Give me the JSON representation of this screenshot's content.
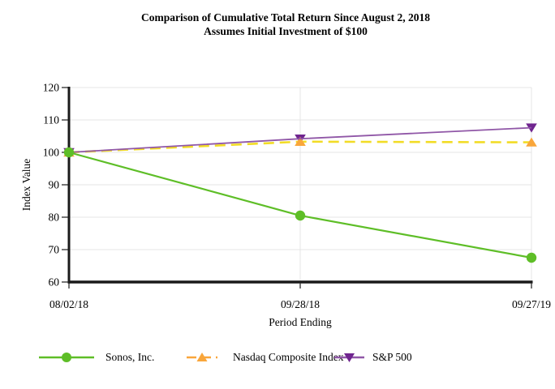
{
  "chart_data": {
    "type": "line",
    "title": "Comparison of Cumulative Total Return Since August 2, 2018",
    "subtitle": "Assumes Initial Investment of $100",
    "x": [
      "08/02/18",
      "09/28/18",
      "09/27/19"
    ],
    "xlabel": "Period Ending",
    "ylabel": "Index Value",
    "ylim": [
      60,
      120
    ],
    "yticks": [
      60,
      70,
      80,
      90,
      100,
      110,
      120
    ],
    "grid": true,
    "legend_position": "bottom",
    "series": [
      {
        "name": "Sonos, Inc.",
        "values": [
          100,
          80.5,
          67.5
        ],
        "line_color": "#5ebe27",
        "marker_color": "#5ebe27",
        "marker": "circle",
        "line_style": "solid"
      },
      {
        "name": "Nasdaq Composite Index",
        "values": [
          100,
          103.3,
          103.1
        ],
        "line_color": "#f2dc26",
        "legend_line_color": "#f9a63b",
        "marker_color": "#f9a63b",
        "marker": "triangle-up",
        "line_style": "dashed"
      },
      {
        "name": "S&P 500",
        "values": [
          100,
          104.2,
          107.6
        ],
        "line_color": "#9057a7",
        "marker_color": "#70258f",
        "marker": "triangle-down",
        "line_style": "solid"
      }
    ],
    "colors": {
      "axis": "#1a1a1a",
      "grid": "#e4e4e4",
      "text": "#000000"
    }
  }
}
